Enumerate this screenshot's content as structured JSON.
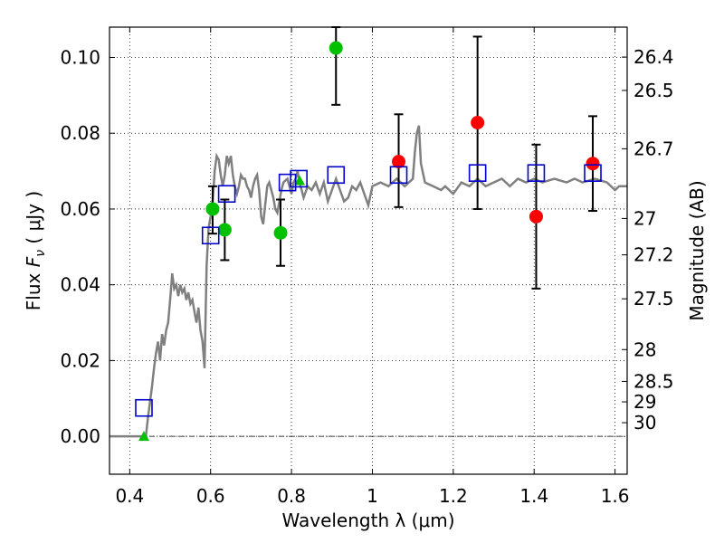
{
  "chart_data": {
    "type": "scatter",
    "title": "",
    "xlabel": "Wavelength  λ (μm)",
    "ylabel": "Flux  F_ν  ( μJy )",
    "ylabel_parts": {
      "prefix": "Flux  ",
      "symbol": "F",
      "subscript": "ν",
      "suffix": "  ( μJy )"
    },
    "y2label": "Magnitude (AB)",
    "xlim": [
      0.35,
      1.63
    ],
    "ylim": [
      -0.01,
      0.108
    ],
    "grid": true,
    "x_ticks": [
      0.4,
      0.6,
      0.8,
      1.0,
      1.2,
      1.4,
      1.6
    ],
    "x_tick_labels": [
      "0.4",
      "0.6",
      "0.8",
      "1",
      "1.2",
      "1.4",
      "1.6"
    ],
    "y_ticks": [
      0.0,
      0.02,
      0.04,
      0.06,
      0.08,
      0.1
    ],
    "y_tick_labels": [
      "0.00",
      "0.02",
      "0.04",
      "0.06",
      "0.08",
      "0.10"
    ],
    "mag_ticks": [
      {
        "label": "26.4",
        "flux": 0.1001
      },
      {
        "label": "26.5",
        "flux": 0.0913
      },
      {
        "label": "26.7",
        "flux": 0.0759
      },
      {
        "label": "27",
        "flux": 0.0575
      },
      {
        "label": "27.2",
        "flux": 0.0479
      },
      {
        "label": "27.5",
        "flux": 0.0363
      },
      {
        "label": "28",
        "flux": 0.0229
      },
      {
        "label": "28.5",
        "flux": 0.0145
      },
      {
        "label": "29",
        "flux": 0.0091
      },
      {
        "label": "30",
        "flux": 0.0036
      }
    ],
    "series": [
      {
        "name": "template_spectrum",
        "style": "line",
        "color": "#808080",
        "points": [
          [
            0.35,
            0.0
          ],
          [
            0.43,
            0.0
          ],
          [
            0.44,
            0.0
          ],
          [
            0.445,
            0.005
          ],
          [
            0.45,
            0.009
          ],
          [
            0.455,
            0.013
          ],
          [
            0.46,
            0.018
          ],
          [
            0.465,
            0.022
          ],
          [
            0.47,
            0.025
          ],
          [
            0.475,
            0.02
          ],
          [
            0.48,
            0.027
          ],
          [
            0.485,
            0.024
          ],
          [
            0.49,
            0.028
          ],
          [
            0.495,
            0.03
          ],
          [
            0.5,
            0.036
          ],
          [
            0.505,
            0.043
          ],
          [
            0.51,
            0.039
          ],
          [
            0.515,
            0.04
          ],
          [
            0.52,
            0.037
          ],
          [
            0.525,
            0.04
          ],
          [
            0.53,
            0.038
          ],
          [
            0.535,
            0.039
          ],
          [
            0.54,
            0.036
          ],
          [
            0.545,
            0.038
          ],
          [
            0.55,
            0.035
          ],
          [
            0.555,
            0.036
          ],
          [
            0.56,
            0.033
          ],
          [
            0.565,
            0.03
          ],
          [
            0.57,
            0.034
          ],
          [
            0.575,
            0.028
          ],
          [
            0.58,
            0.025
          ],
          [
            0.585,
            0.018
          ],
          [
            0.59,
            0.045
          ],
          [
            0.595,
            0.055
          ],
          [
            0.6,
            0.058
          ],
          [
            0.605,
            0.062
          ],
          [
            0.61,
            0.07
          ],
          [
            0.615,
            0.074
          ],
          [
            0.62,
            0.073
          ],
          [
            0.625,
            0.069
          ],
          [
            0.63,
            0.066
          ],
          [
            0.635,
            0.069
          ],
          [
            0.64,
            0.074
          ],
          [
            0.645,
            0.072
          ],
          [
            0.65,
            0.074
          ],
          [
            0.655,
            0.069
          ],
          [
            0.66,
            0.066
          ],
          [
            0.665,
            0.064
          ],
          [
            0.67,
            0.066
          ],
          [
            0.675,
            0.069
          ],
          [
            0.68,
            0.068
          ],
          [
            0.685,
            0.068
          ],
          [
            0.69,
            0.066
          ],
          [
            0.695,
            0.065
          ],
          [
            0.7,
            0.063
          ],
          [
            0.705,
            0.066
          ],
          [
            0.71,
            0.068
          ],
          [
            0.715,
            0.069
          ],
          [
            0.72,
            0.065
          ],
          [
            0.725,
            0.058
          ],
          [
            0.73,
            0.056
          ],
          [
            0.735,
            0.061
          ],
          [
            0.74,
            0.066
          ],
          [
            0.745,
            0.067
          ],
          [
            0.75,
            0.065
          ],
          [
            0.755,
            0.063
          ],
          [
            0.76,
            0.06
          ],
          [
            0.765,
            0.059
          ],
          [
            0.77,
            0.062
          ],
          [
            0.775,
            0.065
          ],
          [
            0.78,
            0.067
          ],
          [
            0.79,
            0.068
          ],
          [
            0.8,
            0.064
          ],
          [
            0.805,
            0.067
          ],
          [
            0.81,
            0.068
          ],
          [
            0.815,
            0.07
          ],
          [
            0.82,
            0.067
          ],
          [
            0.825,
            0.065
          ],
          [
            0.83,
            0.063
          ],
          [
            0.84,
            0.066
          ],
          [
            0.85,
            0.065
          ],
          [
            0.86,
            0.067
          ],
          [
            0.87,
            0.064
          ],
          [
            0.88,
            0.067
          ],
          [
            0.89,
            0.062
          ],
          [
            0.9,
            0.065
          ],
          [
            0.91,
            0.068
          ],
          [
            0.92,
            0.065
          ],
          [
            0.93,
            0.062
          ],
          [
            0.94,
            0.063
          ],
          [
            0.95,
            0.066
          ],
          [
            0.96,
            0.065
          ],
          [
            0.97,
            0.067
          ],
          [
            0.98,
            0.064
          ],
          [
            0.99,
            0.061
          ],
          [
            1.0,
            0.066
          ],
          [
            1.02,
            0.067
          ],
          [
            1.04,
            0.066
          ],
          [
            1.06,
            0.068
          ],
          [
            1.08,
            0.066
          ],
          [
            1.1,
            0.068
          ],
          [
            1.105,
            0.075
          ],
          [
            1.11,
            0.08
          ],
          [
            1.115,
            0.082
          ],
          [
            1.12,
            0.072
          ],
          [
            1.13,
            0.067
          ],
          [
            1.15,
            0.066
          ],
          [
            1.17,
            0.065
          ],
          [
            1.18,
            0.066
          ],
          [
            1.2,
            0.064
          ],
          [
            1.22,
            0.067
          ],
          [
            1.24,
            0.066
          ],
          [
            1.26,
            0.068
          ],
          [
            1.28,
            0.066
          ],
          [
            1.3,
            0.067
          ],
          [
            1.32,
            0.068
          ],
          [
            1.34,
            0.066
          ],
          [
            1.36,
            0.068
          ],
          [
            1.38,
            0.067
          ],
          [
            1.4,
            0.068
          ],
          [
            1.42,
            0.067
          ],
          [
            1.45,
            0.068
          ],
          [
            1.48,
            0.067
          ],
          [
            1.5,
            0.068
          ],
          [
            1.52,
            0.067
          ],
          [
            1.55,
            0.068
          ],
          [
            1.58,
            0.067
          ],
          [
            1.6,
            0.065
          ],
          [
            1.61,
            0.066
          ],
          [
            1.63,
            0.066
          ]
        ]
      },
      {
        "name": "green_points",
        "style": "circle",
        "color": "#00c000",
        "points": [
          {
            "x": 0.605,
            "y": 0.06,
            "err": [
              0.0535,
              0.066
            ]
          },
          {
            "x": 0.635,
            "y": 0.0545,
            "err": [
              0.0465,
              0.0625
            ]
          },
          {
            "x": 0.773,
            "y": 0.0537,
            "err": [
              0.045,
              0.0625
            ]
          },
          {
            "x": 0.91,
            "y": 0.1025,
            "err": [
              0.0875,
              0.108
            ]
          }
        ]
      },
      {
        "name": "green_triangles",
        "style": "triangle",
        "color": "#00c000",
        "points": [
          {
            "x": 0.435,
            "y": 0.0
          },
          {
            "x": 0.82,
            "y": 0.0675
          }
        ]
      },
      {
        "name": "red_points",
        "style": "circle",
        "color": "#ff0000",
        "points": [
          {
            "x": 1.065,
            "y": 0.0725,
            "err": [
              0.0605,
              0.085
            ]
          },
          {
            "x": 1.26,
            "y": 0.0828,
            "err": [
              0.06,
              0.1055
            ]
          },
          {
            "x": 1.405,
            "y": 0.058,
            "err": [
              0.039,
              0.077
            ]
          },
          {
            "x": 1.545,
            "y": 0.072,
            "err": [
              0.0595,
              0.0845
            ]
          }
        ]
      },
      {
        "name": "model_squares",
        "style": "square",
        "color": "#0000cc",
        "points": [
          {
            "x": 0.435,
            "y": 0.0075
          },
          {
            "x": 0.6,
            "y": 0.053
          },
          {
            "x": 0.64,
            "y": 0.064
          },
          {
            "x": 0.79,
            "y": 0.067
          },
          {
            "x": 0.818,
            "y": 0.068
          },
          {
            "x": 0.91,
            "y": 0.069
          },
          {
            "x": 1.065,
            "y": 0.069
          },
          {
            "x": 1.26,
            "y": 0.0695
          },
          {
            "x": 1.405,
            "y": 0.0695
          },
          {
            "x": 1.545,
            "y": 0.0695
          }
        ]
      }
    ]
  }
}
